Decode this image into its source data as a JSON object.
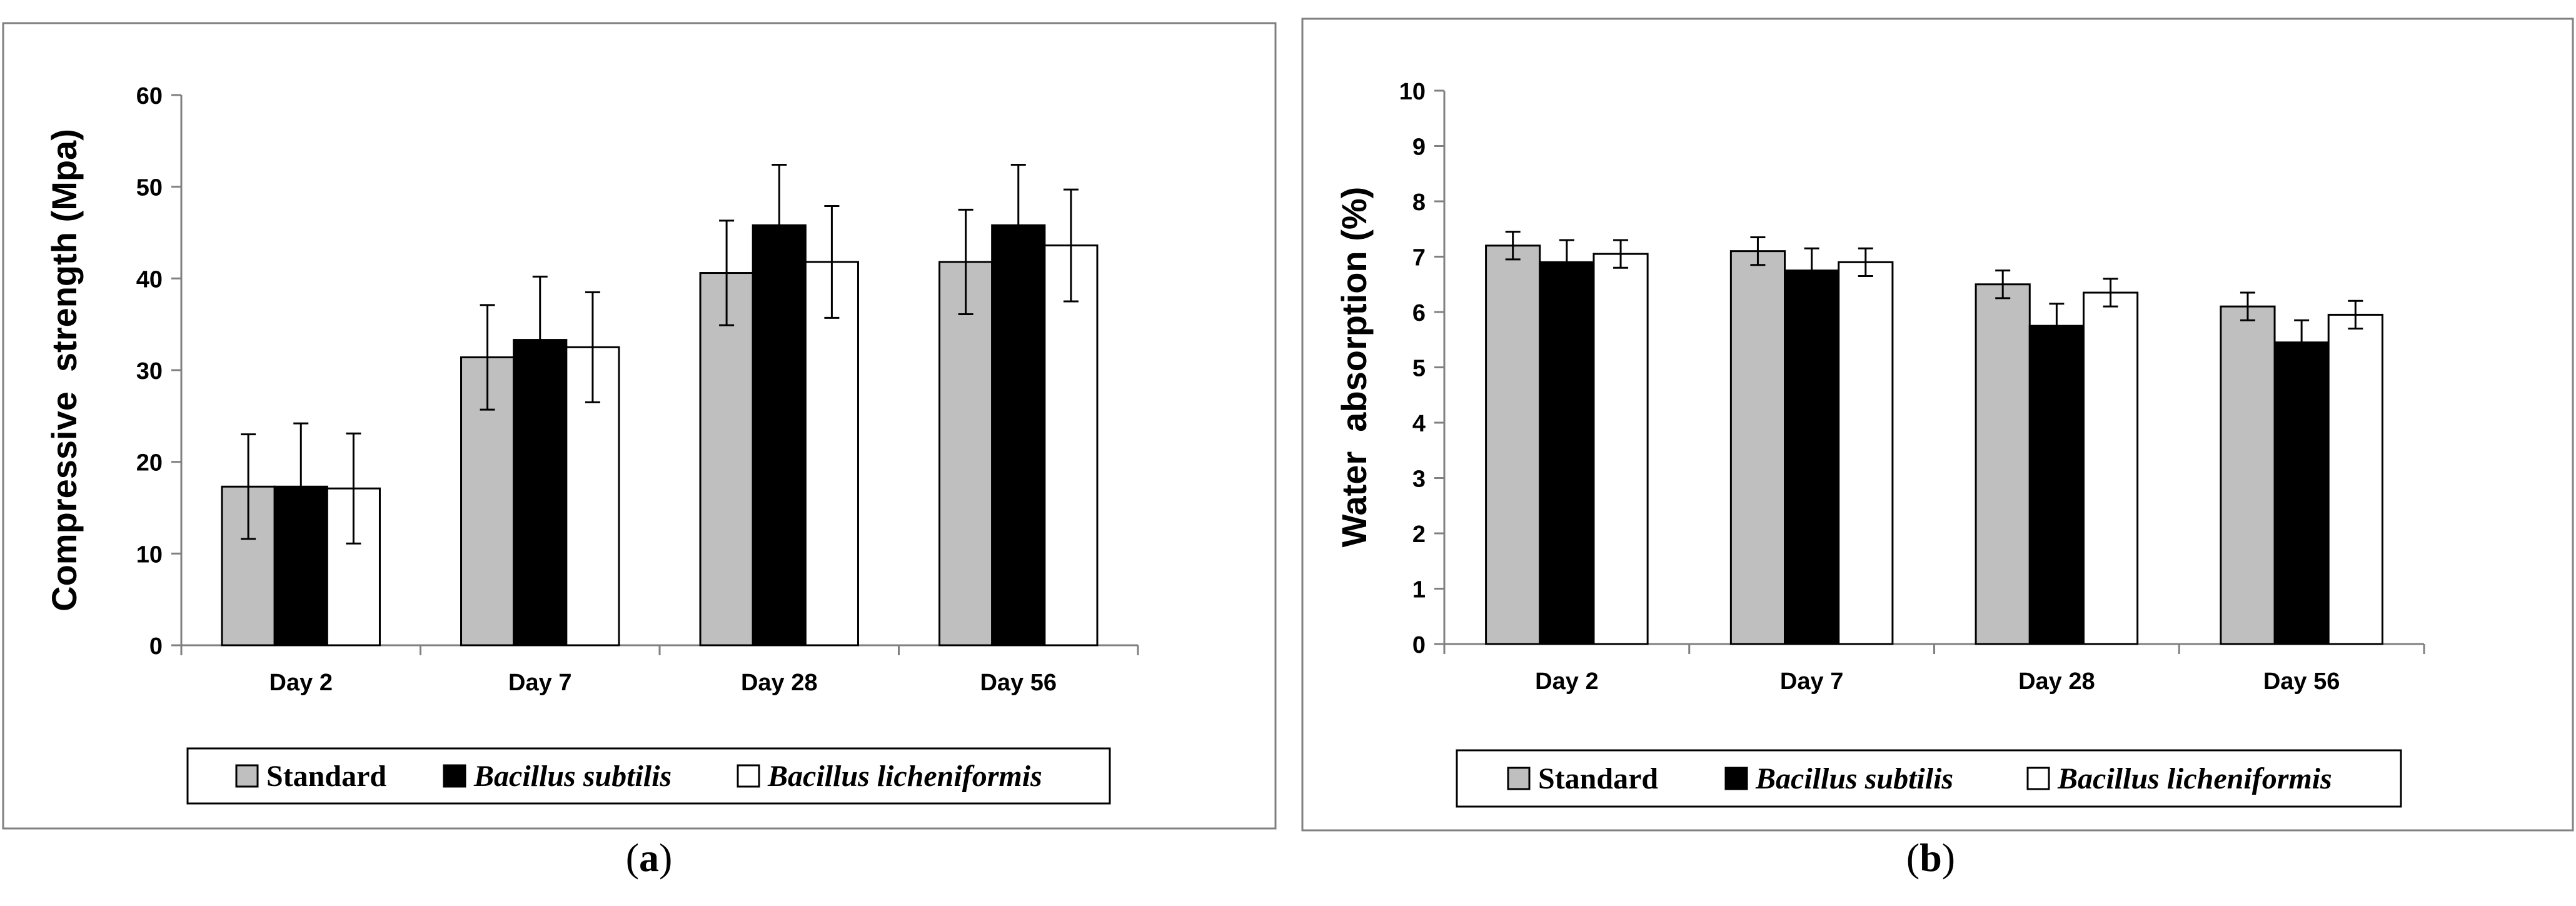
{
  "figure": {
    "captions": [
      "a",
      "b"
    ]
  },
  "colors": {
    "standard": "#bfbfbf",
    "bacillus_subtilis": "#000000",
    "bacillus_licheniformis": "#ffffff",
    "frame": "#808080",
    "axis": "#808080"
  },
  "chart_data": [
    {
      "type": "bar",
      "panel": "a",
      "title": "",
      "xlabel": "",
      "ylabel": "Compressive  strength (Mpa)",
      "ylim": [
        0,
        60
      ],
      "yticks": [
        "0",
        "10",
        "20",
        "30",
        "40",
        "50",
        "60"
      ],
      "grid": false,
      "legend_position": "bottom",
      "categories": [
        "Day 2",
        "Day 7",
        "Day 28",
        "Day 56"
      ],
      "series": [
        {
          "name": "Standard",
          "values": [
            17.3,
            31.4,
            40.6,
            41.8
          ],
          "errors": [
            5.7,
            5.7,
            5.7,
            5.7
          ]
        },
        {
          "name": "Bacillus subtilis",
          "values": [
            17.3,
            33.3,
            45.8,
            45.8
          ],
          "errors": [
            6.9,
            6.9,
            6.6,
            6.6
          ]
        },
        {
          "name": "Bacillus licheniformis",
          "values": [
            17.1,
            32.5,
            41.8,
            43.6
          ],
          "errors": [
            6.0,
            6.0,
            6.1,
            6.1
          ]
        }
      ]
    },
    {
      "type": "bar",
      "panel": "b",
      "title": "",
      "xlabel": "",
      "ylabel": "Water  absorption (%)",
      "ylim": [
        0,
        10
      ],
      "yticks": [
        "0",
        "1",
        "2",
        "3",
        "4",
        "5",
        "6",
        "7",
        "8",
        "9",
        "10"
      ],
      "grid": false,
      "legend_position": "bottom",
      "categories": [
        "Day 2",
        "Day 7",
        "Day 28",
        "Day 56"
      ],
      "series": [
        {
          "name": "Standard",
          "values": [
            7.2,
            7.1,
            6.5,
            6.1
          ],
          "errors": [
            0.25,
            0.25,
            0.25,
            0.25
          ]
        },
        {
          "name": "Bacillus subtilis",
          "values": [
            6.9,
            6.75,
            5.75,
            5.45
          ],
          "errors": [
            0.4,
            0.4,
            0.4,
            0.4
          ]
        },
        {
          "name": "Bacillus licheniformis",
          "values": [
            7.05,
            6.9,
            6.35,
            5.95
          ],
          "errors": [
            0.25,
            0.25,
            0.25,
            0.25
          ]
        }
      ]
    }
  ]
}
